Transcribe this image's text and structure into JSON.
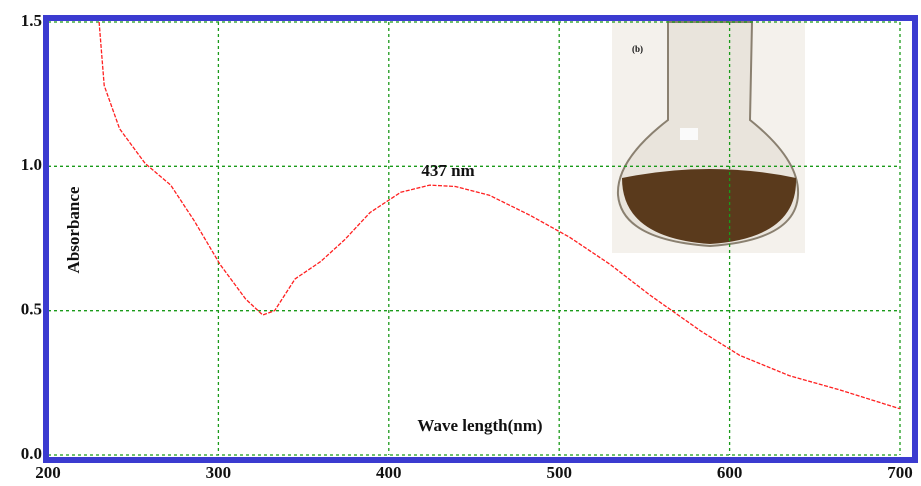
{
  "chart_data": {
    "type": "line",
    "x_label": "Wave length(nm)",
    "y_label": "Absorbance",
    "annotation": "437 nm",
    "inset_label": "(b)",
    "x": [
      230,
      233,
      242,
      257,
      272,
      286,
      301,
      316,
      326,
      333,
      345,
      360,
      374,
      389,
      407,
      424,
      439,
      459,
      483,
      506,
      530,
      553,
      583,
      606,
      635,
      665,
      700
    ],
    "series": [
      {
        "color": "#ff2020",
        "values": [
          1.5,
          1.28,
          1.13,
          1.01,
          0.935,
          0.81,
          0.66,
          0.54,
          0.485,
          0.5,
          0.61,
          0.67,
          0.745,
          0.84,
          0.91,
          0.935,
          0.93,
          0.9,
          0.83,
          0.755,
          0.66,
          0.555,
          0.43,
          0.345,
          0.275,
          0.225,
          0.16
        ]
      }
    ],
    "xlim": [
      200,
      700
    ],
    "ylim": [
      0,
      1.5
    ],
    "xticks": [
      200,
      300,
      400,
      500,
      600,
      700
    ],
    "yticks": [
      {
        "value": 0,
        "label": "0.0"
      },
      {
        "value": 0.5,
        "label": "0.5"
      },
      {
        "value": 1,
        "label": "1.0"
      },
      {
        "value": 1.5,
        "label": "1.5"
      }
    ],
    "grid": true,
    "grid_color": "#1a9a1a",
    "frame_color": "#3b3bd0"
  }
}
